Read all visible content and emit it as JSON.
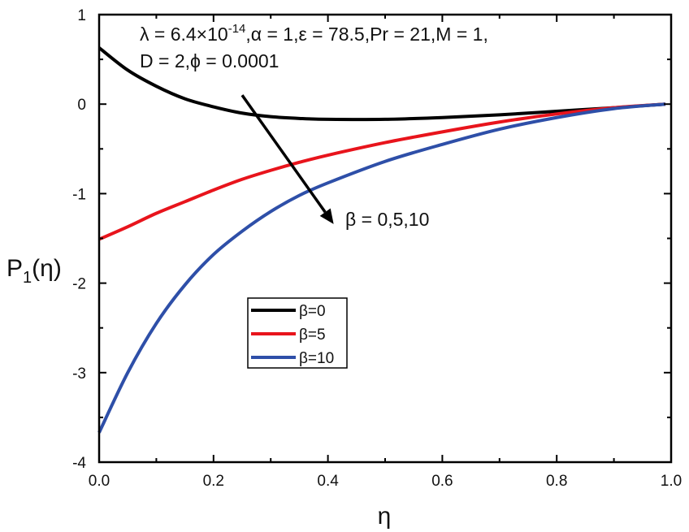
{
  "chart_data": {
    "type": "line",
    "title": "",
    "xlabel": "η",
    "ylabel_main": "P",
    "ylabel_sub": "1",
    "ylabel_suffix": "(η)",
    "xlim": [
      0,
      1
    ],
    "ylim": [
      -4,
      1
    ],
    "xticks": [
      0.0,
      0.2,
      0.4,
      0.6,
      0.8,
      1.0
    ],
    "xtick_labels": [
      "0.0",
      "0.2",
      "0.4",
      "0.6",
      "0.8",
      "1.0"
    ],
    "yticks": [
      1,
      0,
      -1,
      -2,
      -3,
      -4
    ],
    "ytick_labels": [
      "1",
      "0",
      "-1",
      "-2",
      "-3",
      "-4"
    ],
    "grid": false,
    "legend_position": "center-left",
    "annotation": {
      "line1_a": "λ = 6.4×10",
      "line1_sup": "-14",
      "line1_b": ",α = 1,ε = 78.5,Pr = 21,M = 1,",
      "line2": "D = 2,ϕ = 0.0001",
      "arrow_label": "β = 0,5,10",
      "arrow_start": [
        0.25,
        0.1
      ],
      "arrow_end": [
        0.41,
        -1.34
      ]
    },
    "series": [
      {
        "name": "β=0",
        "color": "#000000",
        "x": [
          0.0,
          0.05,
          0.1,
          0.15,
          0.2,
          0.25,
          0.3,
          0.35,
          0.4,
          0.5,
          0.6,
          0.7,
          0.8,
          0.9,
          0.99
        ],
        "y": [
          0.63,
          0.38,
          0.2,
          0.06,
          -0.03,
          -0.1,
          -0.14,
          -0.16,
          -0.17,
          -0.17,
          -0.15,
          -0.12,
          -0.08,
          -0.04,
          0.0
        ]
      },
      {
        "name": "β=5",
        "color": "#e8141c",
        "x": [
          0.0,
          0.05,
          0.1,
          0.15,
          0.2,
          0.25,
          0.3,
          0.35,
          0.4,
          0.5,
          0.6,
          0.7,
          0.8,
          0.9,
          0.99
        ],
        "y": [
          -1.51,
          -1.37,
          -1.22,
          -1.09,
          -0.96,
          -0.84,
          -0.74,
          -0.65,
          -0.57,
          -0.43,
          -0.31,
          -0.2,
          -0.11,
          -0.04,
          0.0
        ]
      },
      {
        "name": "β=10",
        "color": "#2e4fa8",
        "x": [
          0.0,
          0.05,
          0.1,
          0.15,
          0.2,
          0.25,
          0.3,
          0.35,
          0.4,
          0.5,
          0.6,
          0.7,
          0.8,
          0.9,
          0.99
        ],
        "y": [
          -3.67,
          -3.0,
          -2.45,
          -2.02,
          -1.68,
          -1.42,
          -1.2,
          -1.02,
          -0.88,
          -0.64,
          -0.45,
          -0.28,
          -0.15,
          -0.05,
          0.0
        ]
      }
    ]
  }
}
